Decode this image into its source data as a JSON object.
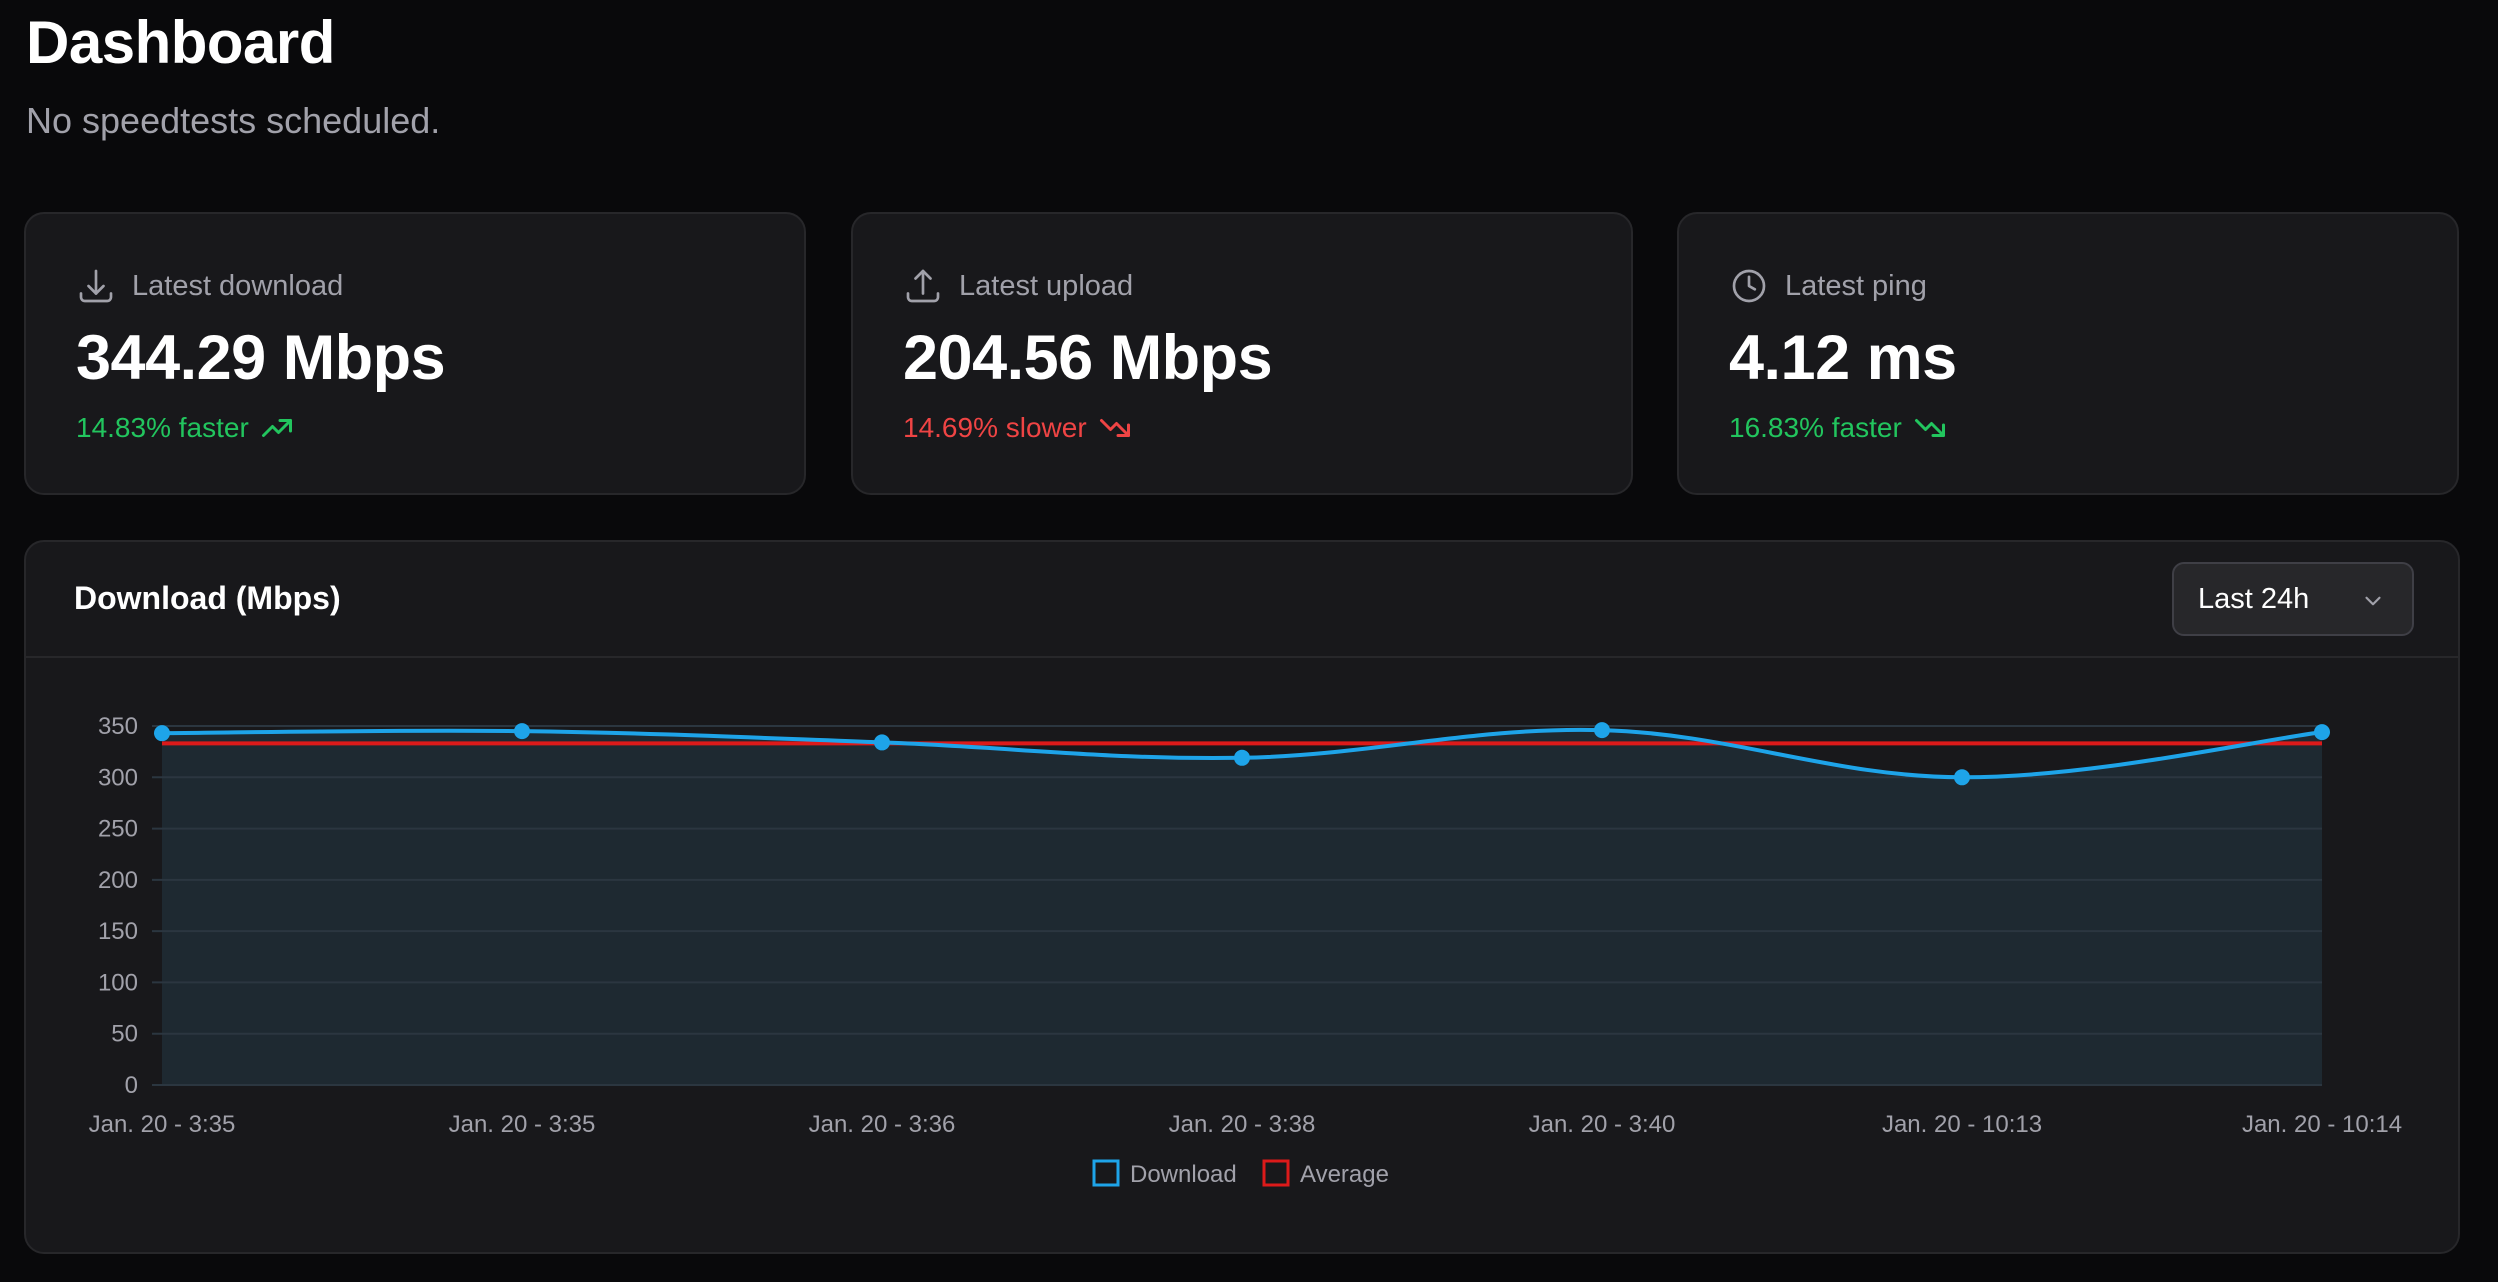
{
  "header": {
    "title": "Dashboard",
    "subtitle": "No speedtests scheduled."
  },
  "stats": {
    "download": {
      "label": "Latest download",
      "value": "344.29 Mbps",
      "delta": "14.83% faster",
      "icon": "download-icon",
      "trend_icon": "trending-up-icon",
      "trend_color": "#22c55e"
    },
    "upload": {
      "label": "Latest upload",
      "value": "204.56 Mbps",
      "delta": "14.69% slower",
      "icon": "upload-icon",
      "trend_icon": "trending-down-icon",
      "trend_color": "#ef4444"
    },
    "ping": {
      "label": "Latest ping",
      "value": "4.12 ms",
      "delta": "16.83% faster",
      "icon": "clock-icon",
      "trend_icon": "trending-down-icon",
      "trend_color": "#22c55e"
    }
  },
  "chart_panel": {
    "title": "Download (Mbps)",
    "range_selected": "Last 24h"
  },
  "colors": {
    "download": "#1ea4e9",
    "average": "#dc1a1a"
  },
  "chart_data": {
    "type": "line",
    "categories": [
      "Jan. 20 - 3:35",
      "Jan. 20 - 3:35",
      "Jan. 20 - 3:36",
      "Jan. 20 - 3:38",
      "Jan. 20 - 3:40",
      "Jan. 20 - 10:13",
      "Jan. 20 - 10:14"
    ],
    "series": [
      {
        "name": "Download",
        "values": [
          343,
          345,
          334,
          319,
          346,
          300,
          344
        ]
      },
      {
        "name": "Average",
        "values": [
          333,
          333,
          333,
          333,
          333,
          333,
          333
        ]
      }
    ],
    "yticks": [
      0,
      50,
      100,
      150,
      200,
      250,
      300,
      350
    ],
    "ylim": [
      0,
      350
    ],
    "grid": true,
    "legend": "bottom-center"
  }
}
